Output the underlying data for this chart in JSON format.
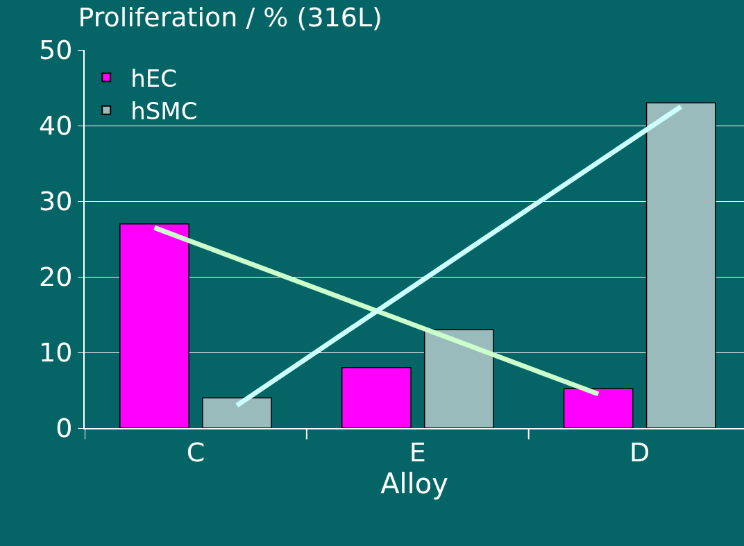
{
  "chart_data": {
    "type": "bar",
    "title": "Proliferation / % (316L)",
    "xlabel": "Alloy",
    "categories": [
      "C",
      "E",
      "D"
    ],
    "series": [
      {
        "name": "hEC",
        "color": "#ff00ff",
        "values": [
          27,
          8,
          5.2
        ]
      },
      {
        "name": "hSMC",
        "color": "#99bbbb",
        "values": [
          4,
          13,
          43
        ]
      },
      {
        "type": "line",
        "color": "#ccffcc",
        "values": [
          26.5,
          15.5,
          4.5
        ]
      },
      {
        "type": "line",
        "color": "#ccffff",
        "values": [
          3,
          22.8,
          42.5
        ]
      }
    ],
    "ylim": [
      0,
      50
    ],
    "yticks": [
      0,
      10,
      20,
      30,
      40,
      50
    ],
    "grid": "y",
    "legend": "top left",
    "marker": "none",
    "line_style": "solid"
  }
}
